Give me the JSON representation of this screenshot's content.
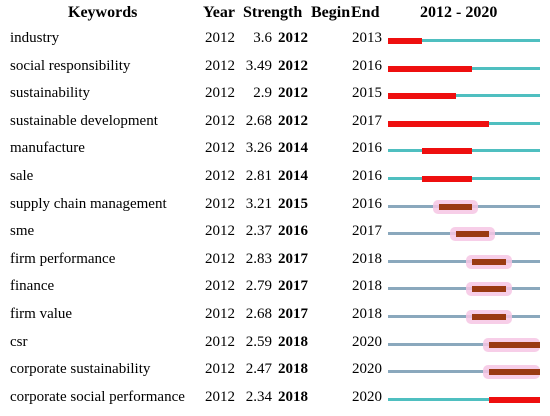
{
  "table": {
    "headers": {
      "keywords": "Keywords",
      "year": "Year",
      "strength": "Strength",
      "begin": "Begin",
      "end": "End",
      "range": "2012 - 2020"
    },
    "timeline": {
      "start": 2012,
      "end": 2020
    },
    "colors": {
      "base_active": "#4fbfc0",
      "base_faded": "#8aa8bd",
      "burst_strong": "#ee0f0f",
      "burst_faded": "#9a3a12",
      "halo": "#f6c6e4"
    }
  },
  "chart_data": {
    "type": "table",
    "title": "",
    "x_range": [
      2012,
      2020
    ],
    "columns": [
      "Keywords",
      "Year",
      "Strength",
      "Begin",
      "End",
      "2012 - 2020"
    ],
    "rows": [
      {
        "keyword": "industry",
        "year": 2012,
        "strength": "3.6",
        "begin": 2012,
        "end": 2013,
        "faded": false
      },
      {
        "keyword": "social responsibility",
        "year": 2012,
        "strength": "3.49",
        "begin": 2012,
        "end": 2016,
        "faded": false
      },
      {
        "keyword": "sustainability",
        "year": 2012,
        "strength": "2.9",
        "begin": 2012,
        "end": 2015,
        "faded": false
      },
      {
        "keyword": "sustainable development",
        "year": 2012,
        "strength": "2.68",
        "begin": 2012,
        "end": 2017,
        "faded": false
      },
      {
        "keyword": "manufacture",
        "year": 2012,
        "strength": "3.26",
        "begin": 2014,
        "end": 2016,
        "faded": false
      },
      {
        "keyword": "sale",
        "year": 2012,
        "strength": "2.81",
        "begin": 2014,
        "end": 2016,
        "faded": false
      },
      {
        "keyword": "supply chain management",
        "year": 2012,
        "strength": "3.21",
        "begin": 2015,
        "end": 2016,
        "faded": true
      },
      {
        "keyword": "sme",
        "year": 2012,
        "strength": "2.37",
        "begin": 2016,
        "end": 2017,
        "faded": true
      },
      {
        "keyword": "firm performance",
        "year": 2012,
        "strength": "2.83",
        "begin": 2017,
        "end": 2018,
        "faded": true
      },
      {
        "keyword": "finance",
        "year": 2012,
        "strength": "2.79",
        "begin": 2017,
        "end": 2018,
        "faded": true
      },
      {
        "keyword": "firm value",
        "year": 2012,
        "strength": "2.68",
        "begin": 2017,
        "end": 2018,
        "faded": true
      },
      {
        "keyword": "csr",
        "year": 2012,
        "strength": "2.59",
        "begin": 2018,
        "end": 2020,
        "faded": true
      },
      {
        "keyword": "corporate sustainability",
        "year": 2012,
        "strength": "2.47",
        "begin": 2018,
        "end": 2020,
        "faded": true
      },
      {
        "keyword": "corporate social performance",
        "year": 2012,
        "strength": "2.34",
        "begin": 2018,
        "end": 2020,
        "faded": false
      }
    ]
  }
}
